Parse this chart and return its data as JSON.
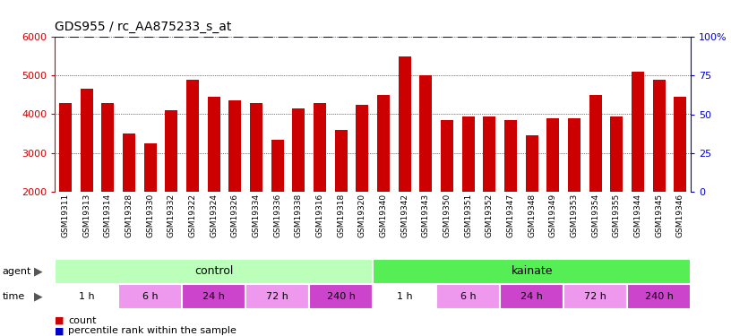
{
  "title": "GDS955 / rc_AA875233_s_at",
  "samples": [
    "GSM19311",
    "GSM19313",
    "GSM19314",
    "GSM19328",
    "GSM19330",
    "GSM19332",
    "GSM19322",
    "GSM19324",
    "GSM19326",
    "GSM19334",
    "GSM19336",
    "GSM19338",
    "GSM19316",
    "GSM19318",
    "GSM19320",
    "GSM19340",
    "GSM19342",
    "GSM19343",
    "GSM19350",
    "GSM19351",
    "GSM19352",
    "GSM19347",
    "GSM19348",
    "GSM19349",
    "GSM19353",
    "GSM19354",
    "GSM19355",
    "GSM19344",
    "GSM19345",
    "GSM19346"
  ],
  "counts": [
    4300,
    4650,
    4300,
    3500,
    3250,
    4100,
    4900,
    4450,
    4350,
    4300,
    3350,
    4150,
    4300,
    3600,
    4250,
    4500,
    5500,
    5000,
    3850,
    3950,
    3950,
    3850,
    3450,
    3900,
    3900,
    4500,
    3950,
    5100,
    4900,
    4450
  ],
  "percentile_value": 100,
  "bar_color": "#cc0000",
  "percentile_color": "#0000cc",
  "ylim": [
    2000,
    6000
  ],
  "yticks_left": [
    2000,
    3000,
    4000,
    5000,
    6000
  ],
  "yticks_right": [
    0,
    25,
    50,
    75,
    100
  ],
  "right_ylabels": [
    "0",
    "25",
    "50",
    "75",
    "100%"
  ],
  "control_color": "#bbffbb",
  "kainate_color": "#55ee55",
  "time_colors": [
    "#ffffff",
    "#ee99ee",
    "#cc44cc",
    "#ee99ee",
    "#cc44cc",
    "#ffffff",
    "#ee99ee",
    "#cc44cc",
    "#ee99ee",
    "#cc44cc"
  ],
  "time_labels": [
    "1 h",
    "6 h",
    "24 h",
    "72 h",
    "240 h",
    "1 h",
    "6 h",
    "24 h",
    "72 h",
    "240 h"
  ],
  "time_boundaries": [
    0,
    3,
    6,
    9,
    12,
    15,
    18,
    21,
    24,
    27,
    30
  ],
  "bg_color": "#ffffff",
  "gray_bg": "#cccccc",
  "bar_width": 0.6,
  "figsize": [
    8.16,
    3.75
  ],
  "dpi": 100
}
